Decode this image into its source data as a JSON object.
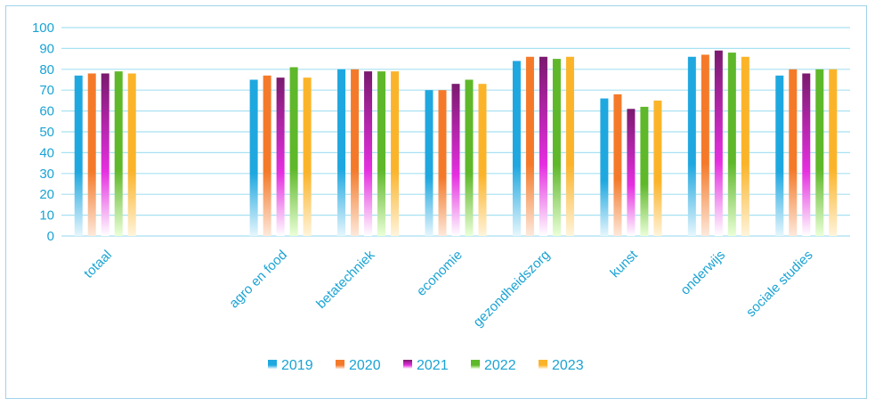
{
  "chart_data": {
    "type": "bar",
    "categories": [
      "totaal",
      "",
      "agro en food",
      "betatechniek",
      "economie",
      "gezondheidszorg",
      "kunst",
      "onderwijs",
      "sociale studies"
    ],
    "series": [
      {
        "name": "2019",
        "values": [
          77,
          null,
          75,
          80,
          70,
          84,
          66,
          86,
          77
        ]
      },
      {
        "name": "2020",
        "values": [
          78,
          null,
          77,
          80,
          70,
          86,
          68,
          87,
          80
        ]
      },
      {
        "name": "2021",
        "values": [
          78,
          null,
          76,
          79,
          73,
          86,
          61,
          89,
          78
        ]
      },
      {
        "name": "2022",
        "values": [
          79,
          null,
          81,
          79,
          75,
          85,
          62,
          88,
          80
        ]
      },
      {
        "name": "2023",
        "values": [
          78,
          null,
          76,
          79,
          73,
          86,
          65,
          86,
          80
        ]
      }
    ],
    "ylim": [
      0,
      100
    ],
    "yticks": [
      "0",
      "10",
      "20",
      "30",
      "40",
      "50",
      "60",
      "70",
      "80",
      "90",
      "100"
    ],
    "grid": true,
    "legend_position": "bottom",
    "colors": {
      "2019": "#1fa8e0",
      "2020": "#f47a2a",
      "2021": "#7a1a6e",
      "2022": "#5fb82a",
      "2023": "#fbb42a"
    },
    "gradient_bottom_colors": {
      "2019": "#e6f6fd",
      "2020": "#fde9dc",
      "2021": "#ffffff",
      "2022": "#eaffd8",
      "2023": "#fff4dc"
    },
    "accent_text_color": "#1aa3d4",
    "gridline_color": "#a8e1f2"
  }
}
